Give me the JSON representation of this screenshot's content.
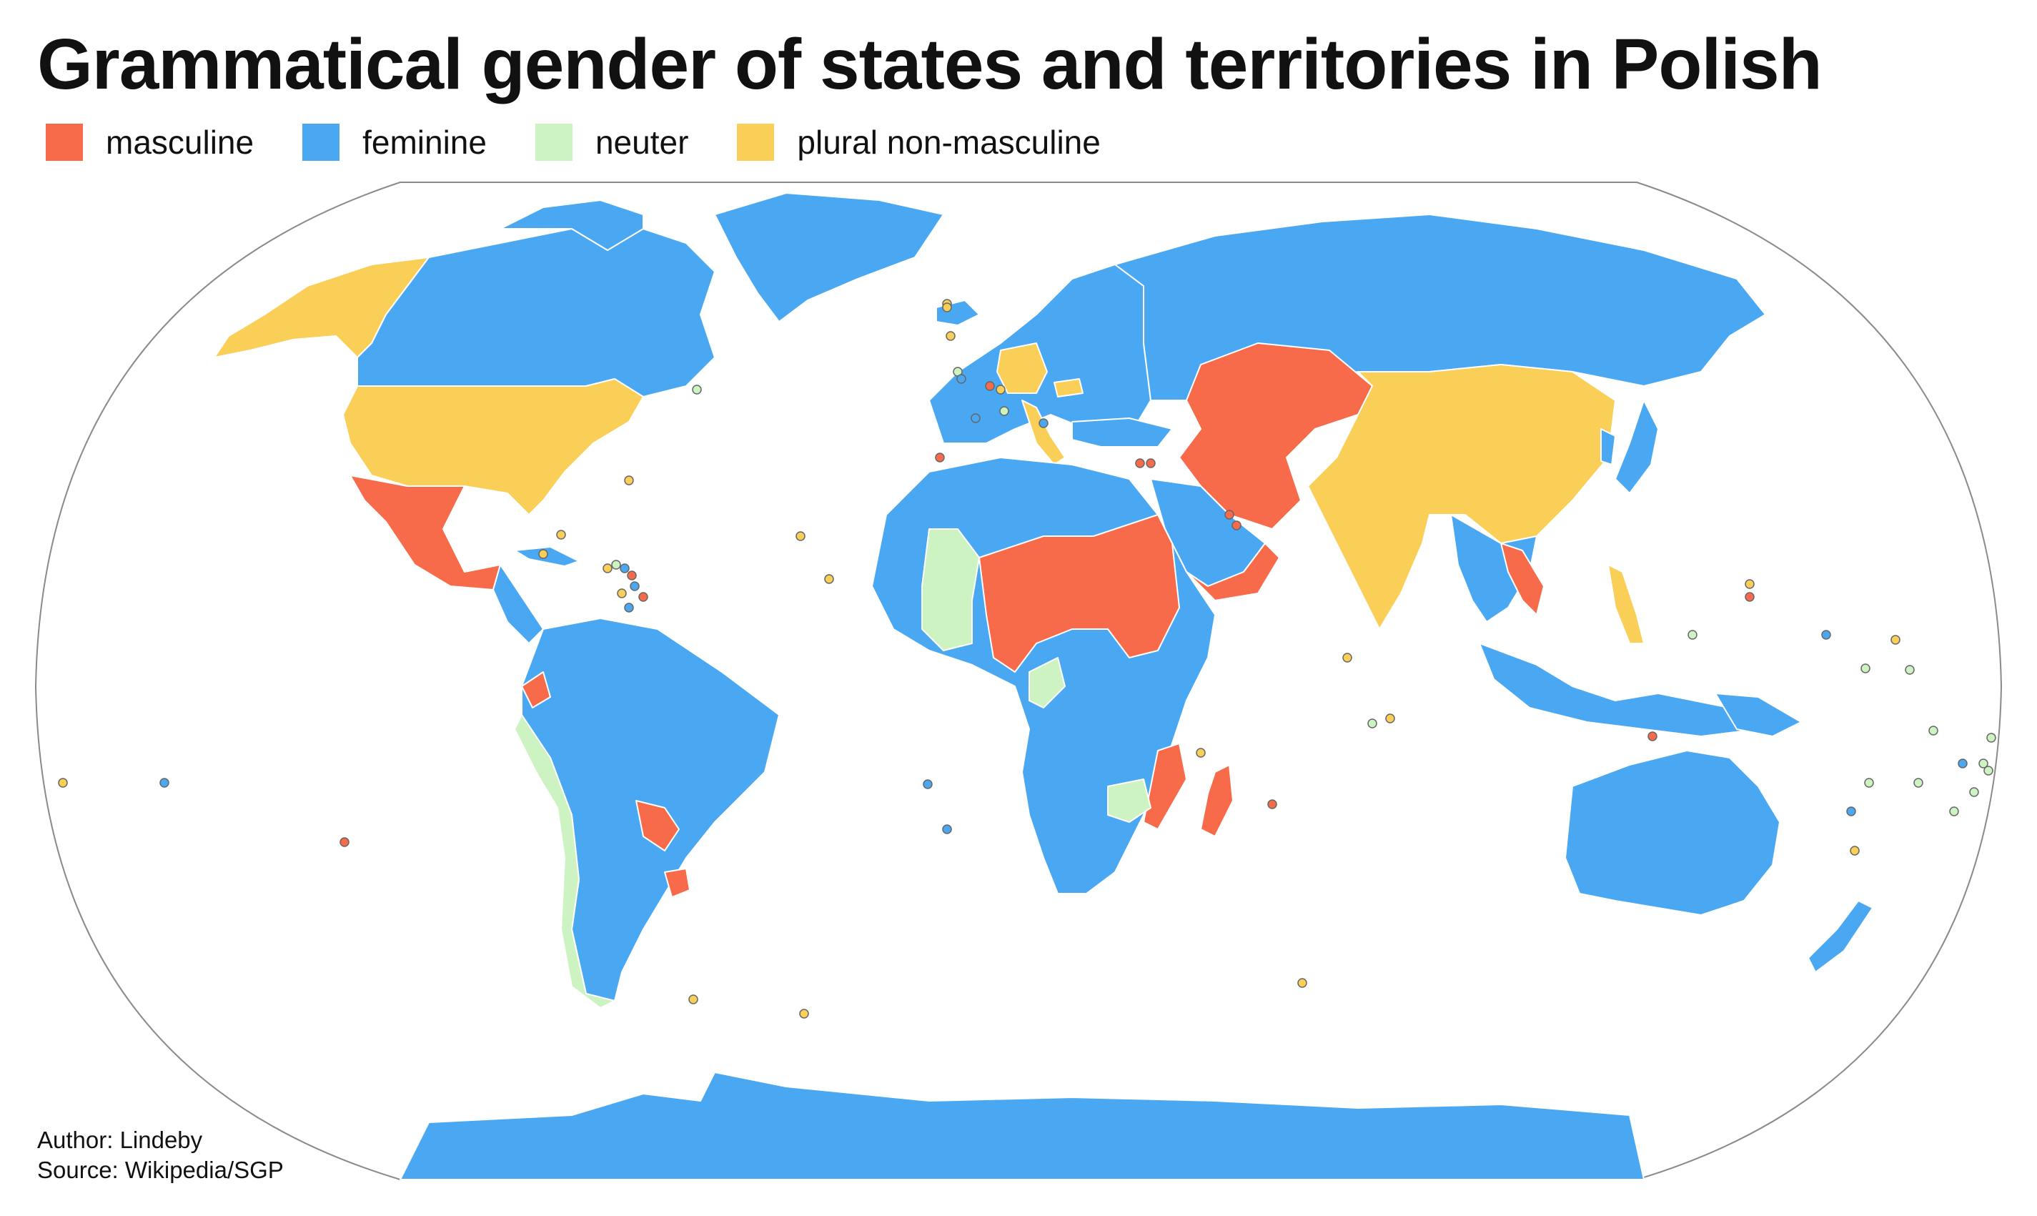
{
  "title": "Grammatical gender of states and territories in Polish",
  "legend": [
    {
      "key": "masculine",
      "label": "masculine",
      "color": "#F76A4A"
    },
    {
      "key": "feminine",
      "label": "feminine",
      "color": "#4AA8F2"
    },
    {
      "key": "neuter",
      "label": "neuter",
      "color": "#CDF3C3"
    },
    {
      "key": "plural",
      "label": "plural non-masculine",
      "color": "#F9CF58"
    }
  ],
  "colors": {
    "ocean": "#FFFFFF",
    "frame": "#8A8A8A",
    "border": "#FFFFFF",
    "dot_outline": "#666666"
  },
  "credits": {
    "author": "Author: Lindeby",
    "source": "Source: Wikipedia/SGP"
  }
}
